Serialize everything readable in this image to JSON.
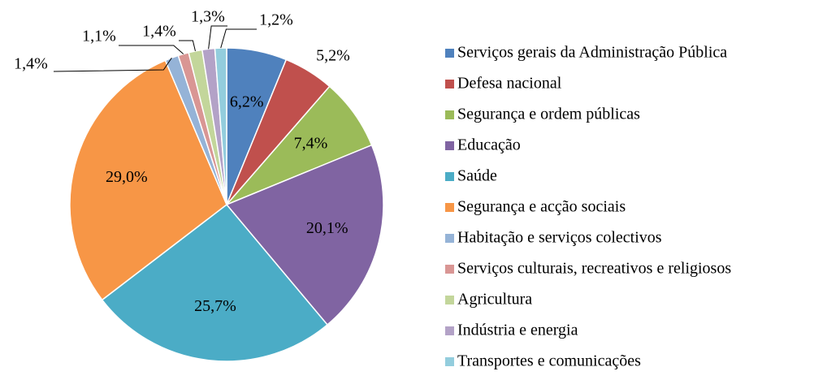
{
  "chart_data": {
    "type": "pie",
    "categories": [
      "Serviços gerais da Administração Pública",
      "Defesa nacional",
      "Segurança e ordem públicas",
      "Educação",
      "Saúde",
      "Segurança e acção sociais",
      "Habitação e serviços colectivos",
      "Serviços culturais, recreativos e religiosos",
      "Agricultura",
      "Indústria e energia",
      "Transportes e comunicações"
    ],
    "values": [
      6.2,
      5.2,
      7.4,
      20.1,
      25.7,
      29.0,
      1.4,
      1.1,
      1.4,
      1.3,
      1.2
    ],
    "value_labels": [
      "6,2%",
      "5,2%",
      "7,4%",
      "20,1%",
      "25,7%",
      "29,0%",
      "1,4%",
      "1,1%",
      "1,4%",
      "1,3%",
      "1,2%"
    ],
    "colors": [
      "#4f81bd",
      "#c0504d",
      "#9bbb59",
      "#8064a2",
      "#4bacc6",
      "#f79646",
      "#95b3d7",
      "#d99694",
      "#c3d69b",
      "#b3a2c7",
      "#93cddd"
    ],
    "legend": "right"
  }
}
